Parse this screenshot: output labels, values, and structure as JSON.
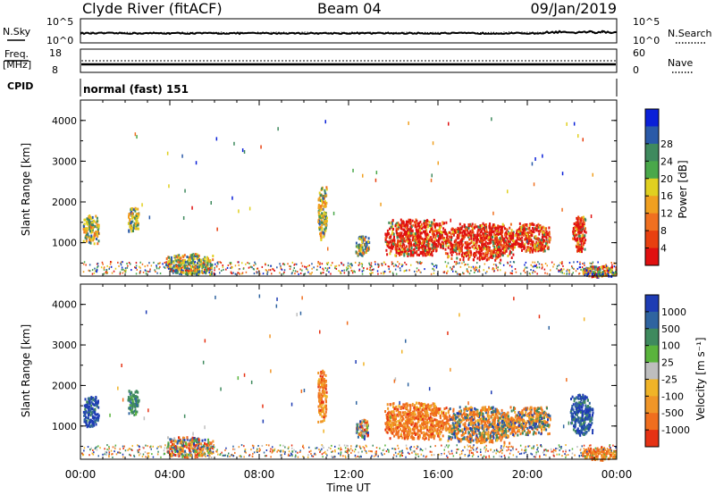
{
  "header": {
    "station": "Clyde River (fitACF)",
    "beam": "Beam 04",
    "date": "09/Jan/2019"
  },
  "control_panels": {
    "nsky": {
      "label": "N.Sky",
      "ticks": [
        "10^5",
        "10^0"
      ],
      "right_label": "N.Search",
      "right_ticks": [
        "10^5",
        "10^0"
      ]
    },
    "freq": {
      "label_top": "Freq.",
      "label_bottom": "[MHz]",
      "ticks": [
        "18",
        "8"
      ],
      "right_label": "Nave",
      "right_ticks": [
        "60",
        "0"
      ]
    },
    "cpid": {
      "label": "CPID",
      "value": "normal (fast) 151"
    }
  },
  "time_axis": {
    "label": "Time UT",
    "ticks": [
      "00:00",
      "04:00",
      "08:00",
      "12:00",
      "16:00",
      "20:00",
      "00:00"
    ]
  },
  "range_axis": {
    "label": "Slant Range [km]",
    "ticks": [
      "1000",
      "2000",
      "3000",
      "4000"
    ]
  },
  "power_scale": {
    "label": "Power [dB]",
    "ticks": [
      "4",
      "8",
      "12",
      "16",
      "20",
      "24",
      "28"
    ],
    "colors": [
      "#0a20d8",
      "#2a5aa8",
      "#3f8a5e",
      "#4aa84a",
      "#e0d020",
      "#f0a020",
      "#f07020",
      "#e84010",
      "#e01010"
    ]
  },
  "velocity_scale": {
    "label": "Velocity [m s⁻¹]",
    "ticks": [
      "1000",
      "500",
      "100",
      "25",
      "-25",
      "-100",
      "-500",
      "-1000"
    ],
    "colors": [
      "#1e3cb4",
      "#2f64a0",
      "#3f8a5e",
      "#5ab43c",
      "#bebebe",
      "#f0b428",
      "#f09628",
      "#f06e1e",
      "#e63214"
    ]
  },
  "chart_data": [
    {
      "type": "heatmap",
      "name": "power",
      "xlim_hours": [
        0,
        24
      ],
      "ylim_km": [
        180,
        4500
      ],
      "blobs": [
        {
          "t0": 0.1,
          "t1": 0.8,
          "r0": 1000,
          "r1": 1700,
          "level": "high"
        },
        {
          "t0": 2.1,
          "t1": 2.6,
          "r0": 1300,
          "r1": 1900,
          "level": "high"
        },
        {
          "t0": 3.8,
          "t1": 5.9,
          "r0": 250,
          "r1": 750,
          "level": "mid"
        },
        {
          "t0": 10.6,
          "t1": 11.0,
          "r0": 1100,
          "r1": 2400,
          "level": "high"
        },
        {
          "t0": 12.3,
          "t1": 12.9,
          "r0": 700,
          "r1": 1200,
          "level": "mid"
        },
        {
          "t0": 13.6,
          "t1": 16.4,
          "r0": 700,
          "r1": 1600,
          "level": "very_high"
        },
        {
          "t0": 16.4,
          "t1": 19.4,
          "r0": 600,
          "r1": 1500,
          "level": "very_high"
        },
        {
          "t0": 19.4,
          "t1": 21.0,
          "r0": 800,
          "r1": 1500,
          "level": "very_high"
        },
        {
          "t0": 22.0,
          "t1": 22.6,
          "r0": 800,
          "r1": 1700,
          "level": "very_high"
        },
        {
          "t0": 22.4,
          "t1": 24.0,
          "r0": 180,
          "r1": 450,
          "level": "mixed"
        }
      ]
    },
    {
      "type": "heatmap",
      "name": "velocity",
      "xlim_hours": [
        0,
        24
      ],
      "ylim_km": [
        180,
        4500
      ],
      "blobs": [
        {
          "t0": 0.1,
          "t1": 0.8,
          "r0": 1000,
          "r1": 1750,
          "level": "positive"
        },
        {
          "t0": 2.1,
          "t1": 2.6,
          "r0": 1300,
          "r1": 1900,
          "level": "green"
        },
        {
          "t0": 3.8,
          "t1": 5.9,
          "r0": 250,
          "r1": 750,
          "level": "mixed"
        },
        {
          "t0": 10.6,
          "t1": 11.0,
          "r0": 1100,
          "r1": 2400,
          "level": "negative"
        },
        {
          "t0": 12.3,
          "t1": 12.9,
          "r0": 700,
          "r1": 1200,
          "level": "mixed"
        },
        {
          "t0": 13.6,
          "t1": 16.4,
          "r0": 700,
          "r1": 1600,
          "level": "negative"
        },
        {
          "t0": 16.4,
          "t1": 19.4,
          "r0": 600,
          "r1": 1500,
          "level": "negative_mixed"
        },
        {
          "t0": 19.4,
          "t1": 21.0,
          "r0": 800,
          "r1": 1500,
          "level": "negative_mixed"
        },
        {
          "t0": 21.9,
          "t1": 22.9,
          "r0": 800,
          "r1": 1800,
          "level": "positive"
        },
        {
          "t0": 22.4,
          "t1": 24.0,
          "r0": 180,
          "r1": 500,
          "level": "negative"
        }
      ]
    }
  ]
}
